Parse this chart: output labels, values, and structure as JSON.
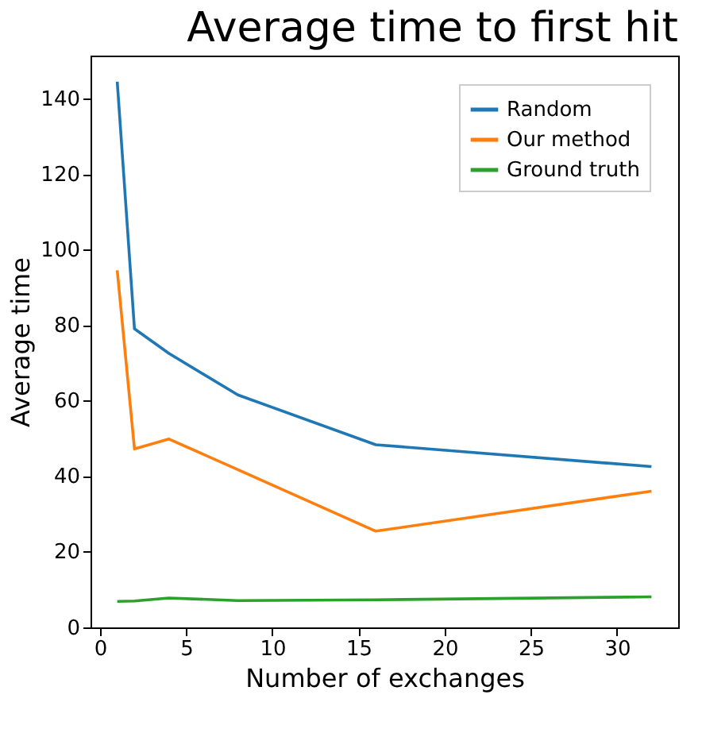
{
  "chart_data": {
    "type": "line",
    "title": "Average time to first hit",
    "xlabel": "Number of exchanges",
    "ylabel": "Average time",
    "x": [
      1,
      2,
      4,
      8,
      16,
      32
    ],
    "series": [
      {
        "name": "Random",
        "color": "#1f77b4",
        "values": [
          144.5,
          79,
          72.5,
          61.5,
          48.3,
          42.5
        ]
      },
      {
        "name": "Our method",
        "color": "#ff7f0e",
        "values": [
          94.5,
          47.2,
          49.8,
          41.7,
          25.4,
          36
        ]
      },
      {
        "name": "Ground truth",
        "color": "#2ca02c",
        "values": [
          6.8,
          6.9,
          7.7,
          7.0,
          7.2,
          8.0
        ]
      }
    ],
    "xlim": [
      -0.55,
      33.55
    ],
    "ylim": [
      -0.1,
      151.4
    ],
    "xticks": [
      0,
      5,
      10,
      15,
      20,
      25,
      30
    ],
    "yticks": [
      0,
      20,
      40,
      60,
      80,
      100,
      120,
      140
    ],
    "grid": false,
    "legend": "top right",
    "marker": "none",
    "line_style": "solid"
  }
}
